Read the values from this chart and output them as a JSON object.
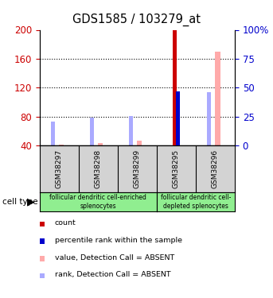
{
  "title": "GDS1585 / 103279_at",
  "samples": [
    "GSM38297",
    "GSM38298",
    "GSM38299",
    "GSM38295",
    "GSM38296"
  ],
  "group1_label": "follicular dendritic cell-enriched\nsplenocytes",
  "group2_label": "follicular dendritic cell-\ndepleted splenocytes",
  "ylim_left": [
    40,
    200
  ],
  "ylim_right": [
    0,
    100
  ],
  "yticks_left": [
    40,
    80,
    120,
    160,
    200
  ],
  "yticks_right": [
    0,
    25,
    50,
    75,
    100
  ],
  "ytick_labels_right": [
    "0",
    "25",
    "50",
    "75",
    "100%"
  ],
  "count_values": [
    41,
    41,
    41,
    200,
    41
  ],
  "rank_values": [
    null,
    null,
    null,
    47,
    null
  ],
  "value_absent": [
    41.5,
    44,
    47,
    null,
    170
  ],
  "rank_absent": [
    21,
    24,
    26,
    null,
    46
  ],
  "count_color": "#cc0000",
  "rank_color": "#0000cc",
  "value_absent_color": "#ffaaaa",
  "rank_absent_color": "#aaaaff",
  "background_color": "#ffffff",
  "left_axis_color": "#cc0000",
  "right_axis_color": "#0000cc",
  "sample_bg_color": "#d3d3d3",
  "group_bg_color": "#90ee90",
  "legend_items": [
    {
      "label": "count",
      "color": "#cc0000"
    },
    {
      "label": "percentile rank within the sample",
      "color": "#0000cc"
    },
    {
      "label": "value, Detection Call = ABSENT",
      "color": "#ffaaaa"
    },
    {
      "label": "rank, Detection Call = ABSENT",
      "color": "#aaaaff"
    }
  ]
}
